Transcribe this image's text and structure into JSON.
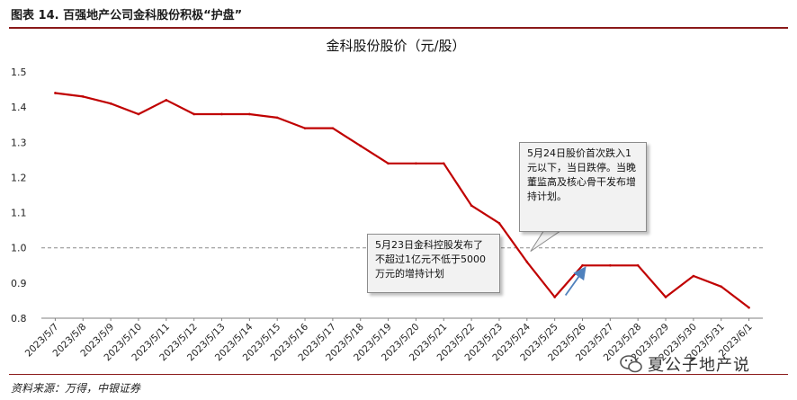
{
  "figure_title": "图表 14. 百强地产公司金科股份积极“护盘”",
  "source": "资料来源：万得，中银证券",
  "watermark": "夏公子地产说",
  "annotations": [
    "5月23日金科控股发布了不超过1亿元不低于5000万元的增持计划",
    "5月24日股价首次跌入1元以下，当日跌停。当晚董监高及核心骨干发布增持计划。"
  ],
  "colors": {
    "line": "#c00000",
    "rule": "#8b1a1a",
    "reference_line": "#8c8c8c",
    "arrow": "#4f81bd"
  },
  "chart_data": {
    "type": "line",
    "title": "金科股份股价（元/股）",
    "xlabel": "",
    "ylabel": "",
    "ylim": [
      0.8,
      1.5
    ],
    "yticks": [
      "0.8",
      "0.9",
      "1.0",
      "1.1",
      "1.2",
      "1.3",
      "1.4",
      "1.5"
    ],
    "grid": false,
    "reference_line": 1.0,
    "x": [
      "2023/5/7",
      "2023/5/8",
      "2023/5/9",
      "2023/5/10",
      "2023/5/11",
      "2023/5/12",
      "2023/5/13",
      "2023/5/14",
      "2023/5/15",
      "2023/5/16",
      "2023/5/17",
      "2023/5/18",
      "2023/5/19",
      "2023/5/20",
      "2023/5/21",
      "2023/5/22",
      "2023/5/23",
      "2023/5/24",
      "2023/5/25",
      "2023/5/26",
      "2023/5/27",
      "2023/5/28",
      "2023/5/29",
      "2023/5/30",
      "2023/5/31",
      "2023/6/1"
    ],
    "series": [
      {
        "values": [
          1.44,
          1.43,
          1.41,
          1.38,
          1.42,
          1.38,
          1.38,
          1.38,
          1.37,
          1.34,
          1.34,
          1.29,
          1.24,
          1.24,
          1.24,
          1.12,
          1.07,
          0.96,
          0.86,
          0.95,
          0.95,
          0.95,
          0.86,
          0.92,
          0.89,
          0.83
        ]
      }
    ]
  }
}
